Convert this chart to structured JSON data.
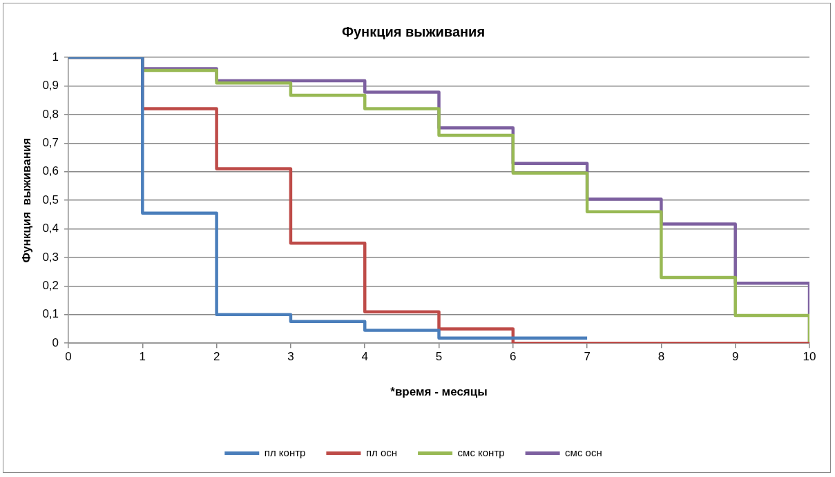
{
  "chart_data": {
    "type": "step",
    "title": "Функция выживания",
    "xlabel": "*время - месяцы",
    "ylabel": "Функция  выживания",
    "xlim": [
      0,
      10
    ],
    "xticks": [
      0,
      1,
      2,
      3,
      4,
      5,
      6,
      7,
      8,
      9,
      10
    ],
    "ylim": [
      0,
      1
    ],
    "yticks": [
      0,
      {
        "value": 0.1,
        "label": "0,1"
      },
      {
        "value": 0.2,
        "label": "0,2"
      },
      {
        "value": 0.3,
        "label": "0,3"
      },
      {
        "value": 0.4,
        "label": "0,4"
      },
      {
        "value": 0.5,
        "label": "0,5"
      },
      {
        "value": 0.6,
        "label": "0,6"
      },
      {
        "value": 0.7,
        "label": "0,7"
      },
      {
        "value": 0.8,
        "label": "0,8"
      },
      {
        "value": 0.9,
        "label": "0,9"
      },
      1
    ],
    "grid": "y",
    "legend": "bottom",
    "marker": "none",
    "line_style": "solid",
    "series": [
      {
        "name": "пл контр",
        "color": "#4a7ebb",
        "x": [
          0,
          1,
          2,
          3,
          4,
          5,
          6,
          7
        ],
        "values": [
          1,
          0.455,
          0.1,
          0.076,
          0.045,
          0.018,
          0.018,
          0.018
        ]
      },
      {
        "name": "пл осн",
        "color": "#be4b48",
        "x": [
          0,
          1,
          2,
          3,
          4,
          5,
          6,
          7,
          8,
          9,
          10
        ],
        "values": [
          1,
          0.82,
          0.61,
          0.35,
          0.11,
          0.05,
          0,
          0,
          0,
          0,
          0
        ]
      },
      {
        "name": "смс контр",
        "color": "#98b954",
        "x": [
          0,
          1,
          2,
          3,
          4,
          5,
          6,
          7,
          8,
          9,
          10
        ],
        "values": [
          1,
          0.954,
          0.91,
          0.867,
          0.82,
          0.727,
          0.595,
          0.46,
          0.23,
          0.097,
          0
        ]
      },
      {
        "name": "смс осн",
        "color": "#7d60a0",
        "x": [
          0,
          1,
          2,
          3,
          4,
          5,
          6,
          7,
          8,
          9,
          10
        ],
        "values": [
          1,
          0.96,
          0.918,
          0.918,
          0.878,
          0.753,
          0.629,
          0.504,
          0.417,
          0.21,
          0
        ]
      }
    ]
  }
}
